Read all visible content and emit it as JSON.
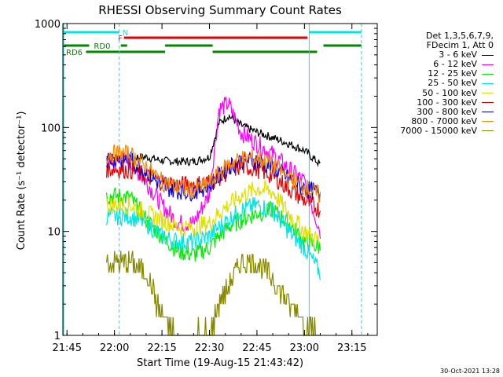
{
  "chart_data": {
    "type": "line",
    "title": "RHESSI Observing Summary Count Rates",
    "xlabel": "Start Time (19-Aug-15 21:43:42)",
    "ylabel": "Count Rate (s⁻¹ detector⁻¹)",
    "y_scale": "log",
    "ylim": [
      1,
      1000
    ],
    "xlim_minutes": [
      "21:43:42",
      "23:23:00"
    ],
    "x_ticks": [
      "21:45",
      "22:00",
      "22:15",
      "22:30",
      "22:45",
      "23:00",
      "23:15"
    ],
    "y_ticks": [
      "1",
      "10",
      "100",
      "1000"
    ],
    "legend_header": [
      "Det 1,3,5,6,7,9,",
      "FDecim 1, Att 0"
    ],
    "legend_position": "right",
    "flags": [
      {
        "label": "N",
        "color": "#00e5e5",
        "segments": [
          [
            "21:43:42",
            "22:01:30"
          ],
          [
            "23:01:30",
            "23:18:00"
          ]
        ]
      },
      {
        "label": "F",
        "color": "#e60000",
        "segments": [
          [
            "22:03:00",
            "23:01:00"
          ]
        ]
      },
      {
        "label": "RD0",
        "color": "#008800",
        "segments": [
          [
            "21:43:42",
            "21:52:00"
          ],
          [
            "22:02:00",
            "22:04:00"
          ],
          [
            "22:16:00",
            "22:31:00"
          ],
          [
            "23:06:00",
            "23:18:00"
          ]
        ]
      },
      {
        "label": "RD6",
        "color": "#008800",
        "segments": [
          [
            "21:51:00",
            "22:16:00"
          ],
          [
            "22:31:00",
            "23:04:00"
          ]
        ]
      }
    ],
    "time_markers": [
      {
        "time": "22:01:30",
        "color": "#00e5e5",
        "style": "dashed"
      },
      {
        "time": "23:01:30",
        "color": "#00e5e5",
        "style": "solid"
      },
      {
        "time": "23:18:00",
        "color": "#00e5e5",
        "style": "dashed"
      }
    ],
    "x_knots": [
      "21:57:30",
      "22:00",
      "22:05",
      "22:10",
      "22:15",
      "22:20",
      "22:25",
      "22:30",
      "22:33",
      "22:36",
      "22:40",
      "22:45",
      "22:50",
      "22:55",
      "23:00",
      "23:05"
    ],
    "series": [
      {
        "name": "3 - 6 keV",
        "color": "#000000",
        "values": [
          52,
          52,
          52,
          52,
          48,
          47,
          47,
          52,
          110,
          130,
          105,
          90,
          80,
          70,
          60,
          44
        ]
      },
      {
        "name": "6 - 12 keV",
        "color": "#ff00ff",
        "values": [
          47,
          47,
          46,
          30,
          18,
          12,
          12,
          23,
          150,
          170,
          90,
          70,
          55,
          40,
          30,
          10
        ]
      },
      {
        "name": "12 - 25 keV",
        "color": "#00ee00",
        "values": [
          22,
          22,
          21,
          13,
          9,
          6.5,
          6,
          7,
          9,
          11,
          13,
          15,
          16,
          12,
          8,
          7
        ]
      },
      {
        "name": "25 - 50 keV",
        "color": "#00e5e5",
        "values": [
          14,
          14,
          14,
          12,
          9,
          8,
          8,
          9,
          11,
          13,
          16,
          18,
          16,
          10,
          7,
          4
        ]
      },
      {
        "name": "50 - 100 keV",
        "color": "#e0e000",
        "values": [
          18,
          18,
          18,
          15,
          13,
          11,
          11,
          12,
          15,
          18,
          22,
          26,
          24,
          15,
          10,
          8
        ]
      },
      {
        "name": "100 - 300 keV",
        "color": "#e60000",
        "values": [
          40,
          40,
          39,
          34,
          30,
          28,
          28,
          30,
          33,
          38,
          42,
          40,
          34,
          26,
          20,
          16
        ]
      },
      {
        "name": "300 - 800 keV",
        "color": "#0000ee",
        "values": [
          50,
          50,
          49,
          38,
          27,
          25,
          24,
          28,
          34,
          42,
          48,
          48,
          42,
          32,
          26,
          23
        ]
      },
      {
        "name": "800 - 7000 keV",
        "color": "#ff8800",
        "values": [
          55,
          56,
          55,
          42,
          30,
          26,
          25,
          29,
          36,
          44,
          50,
          51,
          44,
          33,
          27,
          22
        ]
      },
      {
        "name": "7000 - 15000 keV",
        "color": "#888800",
        "values": [
          5,
          5,
          5,
          4,
          1.5,
          1,
          1,
          1,
          2,
          3,
          5,
          5,
          3.5,
          2,
          1.5,
          1
        ]
      }
    ],
    "timestamp": "30-Oct-2021 13:28"
  }
}
